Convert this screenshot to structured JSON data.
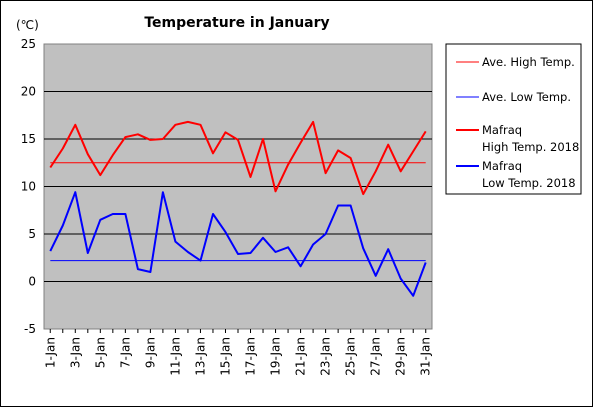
{
  "chart_data": {
    "type": "line",
    "title": "Temperature in January",
    "unit": "(℃)",
    "ylim": [
      -5,
      25
    ],
    "yticks": [
      -5,
      0,
      5,
      10,
      15,
      20,
      25
    ],
    "grid": true,
    "legend_position": "right",
    "categories": [
      "1-Jan",
      "2-Jan",
      "3-Jan",
      "4-Jan",
      "5-Jan",
      "6-Jan",
      "7-Jan",
      "8-Jan",
      "9-Jan",
      "10-Jan",
      "11-Jan",
      "12-Jan",
      "13-Jan",
      "14-Jan",
      "15-Jan",
      "16-Jan",
      "17-Jan",
      "18-Jan",
      "19-Jan",
      "20-Jan",
      "21-Jan",
      "22-Jan",
      "23-Jan",
      "24-Jan",
      "25-Jan",
      "26-Jan",
      "27-Jan",
      "28-Jan",
      "29-Jan",
      "30-Jan",
      "31-Jan"
    ],
    "tick_labels": [
      "1-Jan",
      "3-Jan",
      "5-Jan",
      "7-Jan",
      "9-Jan",
      "11-Jan",
      "13-Jan",
      "15-Jan",
      "17-Jan",
      "19-Jan",
      "21-Jan",
      "23-Jan",
      "25-Jan",
      "27-Jan",
      "29-Jan",
      "31-Jan"
    ],
    "series": [
      {
        "name": "Ave. High Temp.",
        "color": "#ff0000",
        "width": 1,
        "values": [
          12.5,
          12.5,
          12.5,
          12.5,
          12.5,
          12.5,
          12.5,
          12.5,
          12.5,
          12.5,
          12.5,
          12.5,
          12.5,
          12.5,
          12.5,
          12.5,
          12.5,
          12.5,
          12.5,
          12.5,
          12.5,
          12.5,
          12.5,
          12.5,
          12.5,
          12.5,
          12.5,
          12.5,
          12.5,
          12.5,
          12.5
        ]
      },
      {
        "name": "Ave. Low Temp.",
        "color": "#0000ff",
        "width": 1,
        "values": [
          2.2,
          2.2,
          2.2,
          2.2,
          2.2,
          2.2,
          2.2,
          2.2,
          2.2,
          2.2,
          2.2,
          2.2,
          2.2,
          2.2,
          2.2,
          2.2,
          2.2,
          2.2,
          2.2,
          2.2,
          2.2,
          2.2,
          2.2,
          2.2,
          2.2,
          2.2,
          2.2,
          2.2,
          2.2,
          2.2,
          2.2
        ]
      },
      {
        "name": "Mafraq High Temp. 2018",
        "name_lines": [
          "Mafraq",
          "High Temp. 2018"
        ],
        "color": "#ff0000",
        "width": 2,
        "values": [
          12.0,
          14.0,
          16.5,
          13.4,
          11.2,
          13.3,
          15.2,
          15.5,
          14.9,
          15.0,
          16.5,
          16.8,
          16.5,
          13.5,
          15.7,
          14.9,
          11.0,
          15.0,
          9.5,
          12.3,
          14.6,
          16.8,
          11.4,
          13.8,
          13.0,
          9.2,
          11.6,
          14.4,
          11.6,
          13.7,
          15.8
        ]
      },
      {
        "name": "Mafraq Low Temp. 2018",
        "name_lines": [
          "Mafraq",
          "Low Temp. 2018"
        ],
        "color": "#0000ff",
        "width": 2,
        "values": [
          3.2,
          5.9,
          9.4,
          3.0,
          6.5,
          7.1,
          7.1,
          1.3,
          1.0,
          9.4,
          4.2,
          3.1,
          2.2,
          7.1,
          5.2,
          2.9,
          3.0,
          4.6,
          3.1,
          3.6,
          1.6,
          3.9,
          5.0,
          8.0,
          8.0,
          3.5,
          0.6,
          3.4,
          0.3,
          -1.5,
          2.0
        ]
      }
    ]
  }
}
